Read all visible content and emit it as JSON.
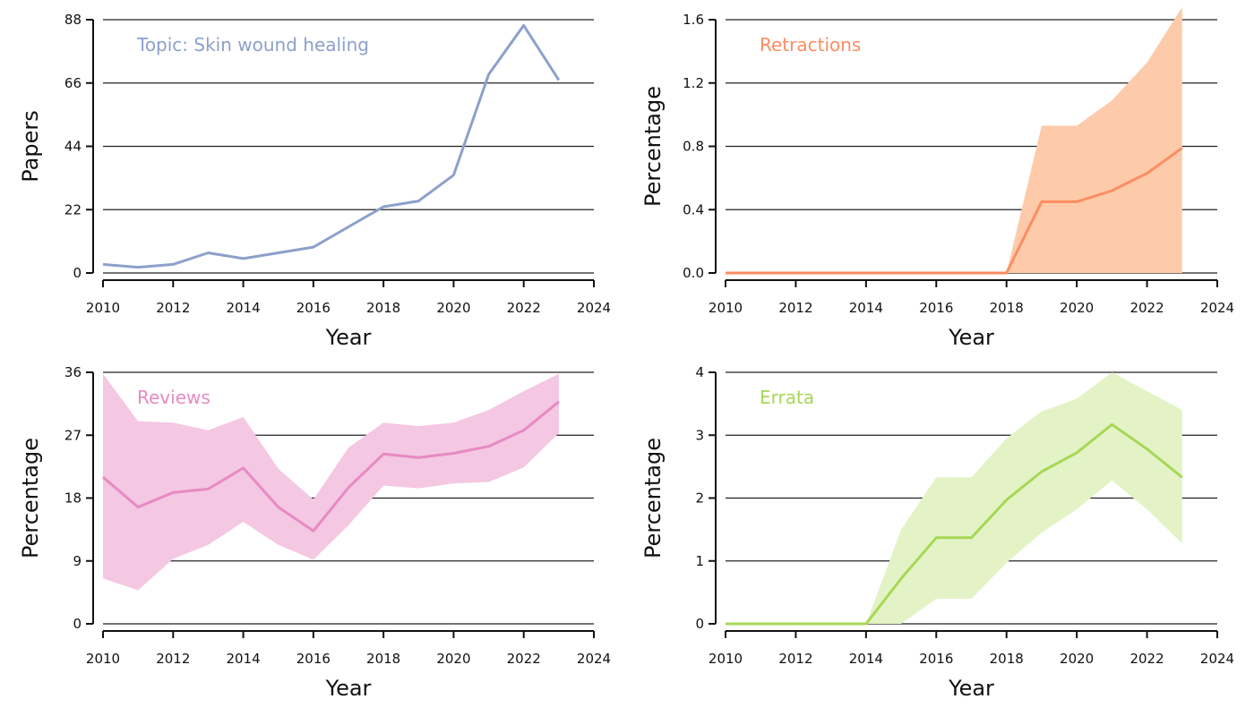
{
  "chart_data": [
    {
      "type": "line",
      "panel_label": "Topic: Skin wound healing",
      "color": "#8DA0CB",
      "xlabel": "Year",
      "ylabel": "Papers",
      "xlim": [
        2010,
        2024
      ],
      "ylim": [
        0,
        88
      ],
      "xticks": [
        "2010",
        "2012",
        "2014",
        "2016",
        "2018",
        "2020",
        "2022",
        "2024"
      ],
      "yticks": [
        "0",
        "22",
        "44",
        "66",
        "88"
      ],
      "x": [
        2010,
        2011,
        2012,
        2013,
        2014,
        2015,
        2016,
        2017,
        2018,
        2019,
        2020,
        2021,
        2022,
        2023
      ],
      "y": [
        3,
        2,
        3,
        7,
        5,
        7,
        9,
        16,
        23,
        25,
        34,
        69,
        86,
        67
      ],
      "lower": null,
      "upper": null
    },
    {
      "type": "area",
      "panel_label": "Retractions",
      "color": "#FC8D62",
      "fill_color": "#FDCBA9",
      "xlabel": "Year",
      "ylabel": "Percentage",
      "xlim": [
        2010,
        2024
      ],
      "ylim": [
        0,
        1.6
      ],
      "xticks": [
        "2010",
        "2012",
        "2014",
        "2016",
        "2018",
        "2020",
        "2022",
        "2024"
      ],
      "yticks": [
        "0.0",
        "0.4",
        "0.8",
        "1.2",
        "1.6"
      ],
      "x": [
        2010,
        2011,
        2012,
        2013,
        2014,
        2015,
        2016,
        2017,
        2018,
        2019,
        2020,
        2021,
        2022,
        2023
      ],
      "y": [
        0,
        0,
        0,
        0,
        0,
        0,
        0,
        0,
        0,
        0.45,
        0.45,
        0.52,
        0.63,
        0.79
      ],
      "lower": [
        0,
        0,
        0,
        0,
        0,
        0,
        0,
        0,
        0,
        0,
        0,
        0,
        0,
        0
      ],
      "upper": [
        0,
        0,
        0,
        0,
        0,
        0,
        0,
        0,
        0,
        0.93,
        0.93,
        1.09,
        1.33,
        1.68
      ]
    },
    {
      "type": "area",
      "panel_label": "Reviews",
      "color": "#E78AC3",
      "fill_color": "#F4C7E2",
      "xlabel": "Year",
      "ylabel": "Percentage",
      "xlim": [
        2010,
        2024
      ],
      "ylim": [
        0,
        36
      ],
      "xticks": [
        "2010",
        "2012",
        "2014",
        "2016",
        "2018",
        "2020",
        "2022",
        "2024"
      ],
      "yticks": [
        "0",
        "9",
        "18",
        "27",
        "36"
      ],
      "x": [
        2010,
        2011,
        2012,
        2013,
        2014,
        2015,
        2016,
        2017,
        2018,
        2019,
        2020,
        2021,
        2022,
        2023
      ],
      "y": [
        21,
        16.7,
        18.8,
        19.3,
        22.3,
        16.7,
        13.3,
        19.5,
        24.3,
        23.8,
        24.4,
        25.4,
        27.7,
        31.8
      ],
      "lower": [
        6.5,
        4.8,
        9.3,
        11.3,
        14.6,
        11.3,
        9.2,
        14.1,
        19.8,
        19.4,
        20.1,
        20.3,
        22.4,
        27.3
      ],
      "upper": [
        35.8,
        29,
        28.8,
        27.7,
        29.6,
        22.2,
        17.8,
        25.2,
        28.8,
        28.3,
        28.8,
        30.6,
        33.3,
        35.8
      ]
    },
    {
      "type": "area",
      "panel_label": "Errata",
      "color": "#A6D854",
      "fill_color": "#E3F3C6",
      "xlabel": "Year",
      "ylabel": "Percentage",
      "xlim": [
        2010,
        2024
      ],
      "ylim": [
        0,
        4
      ],
      "xticks": [
        "2010",
        "2012",
        "2014",
        "2016",
        "2018",
        "2020",
        "2022",
        "2024"
      ],
      "yticks": [
        "0",
        "1",
        "2",
        "3",
        "4"
      ],
      "x": [
        2010,
        2011,
        2012,
        2013,
        2014,
        2015,
        2016,
        2017,
        2018,
        2019,
        2020,
        2021,
        2022,
        2023
      ],
      "y": [
        0,
        0,
        0,
        0,
        0,
        0.72,
        1.37,
        1.37,
        1.97,
        2.42,
        2.72,
        3.17,
        2.78,
        2.33
      ],
      "lower": [
        0,
        0,
        0,
        0,
        0,
        0,
        0.4,
        0.4,
        0.97,
        1.45,
        1.82,
        2.28,
        1.82,
        1.28
      ],
      "upper": [
        0,
        0,
        0,
        0,
        0,
        1.5,
        2.33,
        2.33,
        2.95,
        3.38,
        3.58,
        4.0,
        3.7,
        3.4
      ]
    }
  ]
}
